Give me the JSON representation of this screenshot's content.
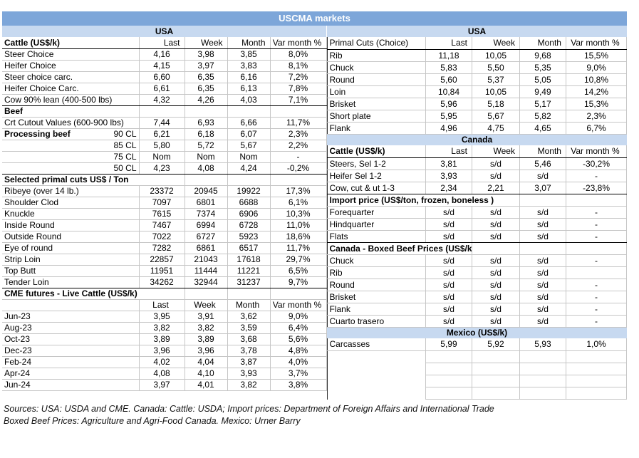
{
  "title": "USCMA markets",
  "colors": {
    "title_band_bg": "#7da6d9",
    "title_band_text": "#ffffff",
    "region_band_bg": "#c7d9f0",
    "grid_line": "#c6c6c6",
    "section_line": "#000000"
  },
  "tables": {
    "left": {
      "region": "USA",
      "columns": [
        "Last",
        "Week",
        "Month",
        "Var month %"
      ],
      "rows": [
        {
          "t": "band",
          "label": "USA"
        },
        {
          "t": "colheader",
          "label": "Cattle (US$/k)",
          "bold": true,
          "dark": true
        },
        {
          "t": "data",
          "label": "Steer Choice",
          "v": [
            "4,16",
            "3,98",
            "3,85",
            "8,0%"
          ]
        },
        {
          "t": "data",
          "label": "Heifer Choice",
          "v": [
            "4,15",
            "3,97",
            "3,83",
            "8,1%"
          ]
        },
        {
          "t": "data",
          "label": "Steer choice carc.",
          "v": [
            "6,60",
            "6,35",
            "6,16",
            "7,2%"
          ]
        },
        {
          "t": "data",
          "label": "Heifer Choice Carc.",
          "v": [
            "6,61",
            "6,35",
            "6,13",
            "7,8%"
          ]
        },
        {
          "t": "data",
          "label": "Cow 90% lean (400-500 lbs)",
          "v": [
            "4,32",
            "4,26",
            "4,03",
            "7,1%"
          ]
        },
        {
          "t": "section",
          "label": "Beef",
          "span": 1
        },
        {
          "t": "data",
          "label": "Crt Cutout Values (600-900 lbs)",
          "v": [
            "7,44",
            "6,93",
            "6,66",
            "11,7%"
          ]
        },
        {
          "t": "data",
          "label": "Processing beef",
          "sub": "90 CL",
          "bold": true,
          "v": [
            "6,21",
            "6,18",
            "6,07",
            "2,3%"
          ]
        },
        {
          "t": "data",
          "label": "",
          "sub": "85 CL",
          "v": [
            "5,80",
            "5,72",
            "5,67",
            "2,2%"
          ]
        },
        {
          "t": "data",
          "label": "",
          "sub": "75 CL",
          "v": [
            "Nom",
            "Nom",
            "Nom",
            "-"
          ]
        },
        {
          "t": "data",
          "label": "",
          "sub": "50 CL",
          "v": [
            "4,23",
            "4,08",
            "4,24",
            "-0,2%"
          ]
        },
        {
          "t": "section",
          "label": "Selected primal cuts US$ / Ton",
          "span": 2
        },
        {
          "t": "data",
          "label": "Ribeye (over 14 lb.)",
          "v": [
            "23372",
            "20945",
            "19922",
            "17,3%"
          ]
        },
        {
          "t": "data",
          "label": "Shoulder Clod",
          "v": [
            "7097",
            "6801",
            "6688",
            "6,1%"
          ]
        },
        {
          "t": "data",
          "label": "Knuckle",
          "v": [
            "7615",
            "7374",
            "6906",
            "10,3%"
          ]
        },
        {
          "t": "data",
          "label": "Inside Round",
          "v": [
            "7467",
            "6994",
            "6728",
            "11,0%"
          ]
        },
        {
          "t": "data",
          "label": "Outside Round",
          "v": [
            "7022",
            "6727",
            "5923",
            "18,6%"
          ]
        },
        {
          "t": "data",
          "label": "Eye of round",
          "v": [
            "7282",
            "6861",
            "6517",
            "11,7%"
          ]
        },
        {
          "t": "data",
          "label": "Strip Loin",
          "v": [
            "22857",
            "21043",
            "17618",
            "29,7%"
          ]
        },
        {
          "t": "data",
          "label": "Top Butt",
          "v": [
            "11951",
            "11444",
            "11221",
            "6,5%"
          ]
        },
        {
          "t": "data",
          "label": "Tender Loin",
          "v": [
            "34262",
            "32944",
            "31237",
            "9,7%"
          ]
        },
        {
          "t": "section",
          "label": "CME futures - Live Cattle (US$/k)",
          "span": 2
        },
        {
          "t": "colheader",
          "label": "",
          "center": true,
          "dark": false
        },
        {
          "t": "data",
          "label": "Jun-23",
          "v": [
            "3,95",
            "3,91",
            "3,62",
            "9,0%"
          ]
        },
        {
          "t": "data",
          "label": "Aug-23",
          "v": [
            "3,82",
            "3,82",
            "3,59",
            "6,4%"
          ]
        },
        {
          "t": "data",
          "label": "Oct-23",
          "v": [
            "3,89",
            "3,89",
            "3,68",
            "5,6%"
          ]
        },
        {
          "t": "data",
          "label": "Dec-23",
          "v": [
            "3,96",
            "3,96",
            "3,78",
            "4,8%"
          ]
        },
        {
          "t": "data",
          "label": "Feb-24",
          "v": [
            "4,02",
            "4,04",
            "3,87",
            "4,0%"
          ]
        },
        {
          "t": "data",
          "label": "Apr-24",
          "v": [
            "4,08",
            "4,10",
            "3,93",
            "3,7%"
          ]
        },
        {
          "t": "data",
          "label": "Jun-24",
          "v": [
            "3,97",
            "4,01",
            "3,82",
            "3,8%"
          ]
        }
      ]
    },
    "right": {
      "columns": [
        "Last",
        "Week",
        "Month",
        "Var month %"
      ],
      "rows": [
        {
          "t": "band",
          "label": "USA"
        },
        {
          "t": "colheader",
          "label": "Primal Cuts (Choice)",
          "bold": false,
          "dark": true
        },
        {
          "t": "data",
          "label": "Rib",
          "v": [
            "11,18",
            "10,05",
            "9,68",
            "15,5%"
          ]
        },
        {
          "t": "data",
          "label": "Chuck",
          "v": [
            "5,83",
            "5,50",
            "5,35",
            "9,0%"
          ]
        },
        {
          "t": "data",
          "label": "Round",
          "v": [
            "5,60",
            "5,37",
            "5,05",
            "10,8%"
          ]
        },
        {
          "t": "data",
          "label": "Loin",
          "v": [
            "10,84",
            "10,05",
            "9,49",
            "14,2%"
          ]
        },
        {
          "t": "data",
          "label": "Brisket",
          "v": [
            "5,96",
            "5,18",
            "5,17",
            "15,3%"
          ]
        },
        {
          "t": "data",
          "label": "Short plate",
          "v": [
            "5,95",
            "5,67",
            "5,82",
            "2,3%"
          ]
        },
        {
          "t": "data",
          "label": "Flank",
          "v": [
            "4,96",
            "4,75",
            "4,65",
            "6,7%"
          ]
        },
        {
          "t": "band",
          "label": "Canada"
        },
        {
          "t": "colheader",
          "label": "Cattle (US$/k)",
          "bold": true,
          "dark": true
        },
        {
          "t": "data",
          "label": "Steers, Sel 1-2",
          "v": [
            "3,81",
            "s/d",
            "5,46",
            "-30,2%"
          ]
        },
        {
          "t": "data",
          "label": "Heifer Sel 1-2",
          "v": [
            "3,93",
            "s/d",
            "s/d",
            "-"
          ]
        },
        {
          "t": "data",
          "label": "Cow, cut & ut 1-3",
          "v": [
            "2,34",
            "2,21",
            "3,07",
            "-23,8%"
          ]
        },
        {
          "t": "section",
          "label": "Import price (US$/ton, frozen, boneless )",
          "span": 3
        },
        {
          "t": "data",
          "label": "Forequarter",
          "v": [
            "s/d",
            "s/d",
            "s/d",
            "-"
          ]
        },
        {
          "t": "data",
          "label": "Hindquarter",
          "v": [
            "s/d",
            "s/d",
            "s/d",
            "-"
          ]
        },
        {
          "t": "data",
          "label": "Flats",
          "v": [
            "s/d",
            "s/d",
            "s/d",
            "-"
          ]
        },
        {
          "t": "section",
          "label": "Canada - Boxed Beef Prices (US$/k)",
          "span": 2
        },
        {
          "t": "data",
          "label": "Chuck",
          "v": [
            "s/d",
            "s/d",
            "s/d",
            "-"
          ]
        },
        {
          "t": "data",
          "label": "Rib",
          "v": [
            "s/d",
            "s/d",
            "s/d",
            ""
          ]
        },
        {
          "t": "data",
          "label": "Round",
          "v": [
            "s/d",
            "s/d",
            "s/d",
            "-"
          ]
        },
        {
          "t": "data",
          "label": "Brisket",
          "v": [
            "s/d",
            "s/d",
            "s/d",
            "-"
          ]
        },
        {
          "t": "data",
          "label": "Flank",
          "v": [
            "s/d",
            "s/d",
            "s/d",
            "-"
          ]
        },
        {
          "t": "data",
          "label": "Cuarto trasero",
          "v": [
            "s/d",
            "s/d",
            "s/d",
            "-"
          ]
        },
        {
          "t": "band",
          "label": "Mexico (US$/k)"
        },
        {
          "t": "data",
          "label": "Carcasses",
          "v": [
            "5,99",
            "5,92",
            "5,93",
            "1,0%"
          ]
        },
        {
          "t": "empty"
        },
        {
          "t": "empty"
        },
        {
          "t": "empty"
        },
        {
          "t": "empty"
        }
      ]
    }
  },
  "footer": {
    "line1": "Sources: USA: USDA and CME. Canada: Cattle: USDA; Import prices: Department of Foreign Affairs and International Trade",
    "line2": "Boxed Beef Prices: Agriculture and Agri-Food Canada. Mexico: Urner Barry"
  }
}
